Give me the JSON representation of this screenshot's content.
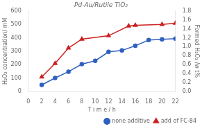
{
  "chart_data": {
    "type": "line",
    "title": "Pd-Au/Rutile TiO₂",
    "xlabel": "T i m e / h",
    "ylabel": "H₂O₂ concentration/ mM",
    "y2label": "Formed H₂O₂ /w t%",
    "xlim": [
      0,
      22
    ],
    "xticks": [
      0,
      2,
      4,
      6,
      8,
      10,
      12,
      14,
      16,
      18,
      20,
      22
    ],
    "ylim": [
      0,
      600
    ],
    "yticks": [
      0,
      100,
      200,
      300,
      400,
      500,
      600
    ],
    "y2lim": [
      0.0,
      1.8
    ],
    "y2ticks": [
      {
        "value": 0,
        "label": "0.0"
      },
      0.2,
      0.4,
      0.6,
      0.8,
      {
        "value": 1,
        "label": "1.0"
      },
      1.2,
      1.4,
      1.6,
      1.8
    ],
    "grid": false,
    "legend": "lower right",
    "series": [
      {
        "name": "none additive",
        "color": "#3060c0",
        "marker": "circle",
        "line_style": "solid",
        "x": [
          2,
          4,
          6,
          8,
          10,
          12,
          14,
          16,
          18,
          20,
          22
        ],
        "values": [
          48,
          100,
          147,
          203,
          228,
          295,
          305,
          340,
          383,
          388,
          393
        ]
      },
      {
        "name": "add of FC-84",
        "color": "#cc2020",
        "marker": "triangle",
        "line_style": "solid",
        "x": [
          2,
          4,
          6,
          8,
          12,
          15,
          16,
          20,
          22
        ],
        "values": [
          108,
          208,
          323,
          390,
          415,
          488,
          493,
          500,
          508
        ]
      }
    ]
  }
}
